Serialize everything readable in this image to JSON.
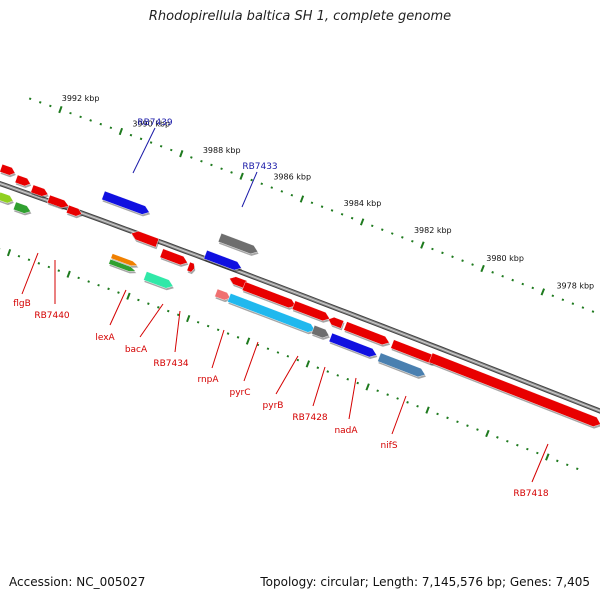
{
  "title": "Rhodopirellula baltica SH 1, complete genome",
  "footer": {
    "accession": "Accession: NC_005027",
    "summary": "Topology: circular; Length: 7,145,576 bp; Genes: 7,405"
  },
  "colors": {
    "backbone": "#8a8a8a",
    "tick": "#1e7a1e",
    "label_red": "#d40000",
    "label_blue": "#1a1aa8",
    "gene_red": "#e80000",
    "gene_blue": "#1010e0",
    "gene_gray": "#6e6e6e",
    "gene_cyan": "#20b8ee",
    "gene_steel": "#4a80b0",
    "gene_teal": "#30e8a8",
    "gene_orange": "#f08000",
    "gene_green": "#30a030",
    "gene_lime": "#90d020",
    "gene_pink": "#f07070"
  },
  "scale": {
    "outer_labels": [
      "3992 kbp",
      "3990 kbp",
      "3988 kbp",
      "3986 kbp",
      "3984 kbp",
      "3982 kbp",
      "3980 kbp",
      "3978 kbp"
    ]
  },
  "labels": [
    {
      "text": "RB7439",
      "color": "blue"
    },
    {
      "text": "RB7433",
      "color": "blue"
    },
    {
      "text": "flgB",
      "color": "red"
    },
    {
      "text": "RB7440",
      "color": "red"
    },
    {
      "text": "lexA",
      "color": "red"
    },
    {
      "text": "bacA",
      "color": "red"
    },
    {
      "text": "RB7434",
      "color": "red"
    },
    {
      "text": "rnpA",
      "color": "red"
    },
    {
      "text": "pyrC",
      "color": "red"
    },
    {
      "text": "pyrB",
      "color": "red"
    },
    {
      "text": "RB7428",
      "color": "red"
    },
    {
      "text": "nadA",
      "color": "red"
    },
    {
      "text": "nifS",
      "color": "red"
    },
    {
      "text": "RB7418",
      "color": "red"
    }
  ]
}
